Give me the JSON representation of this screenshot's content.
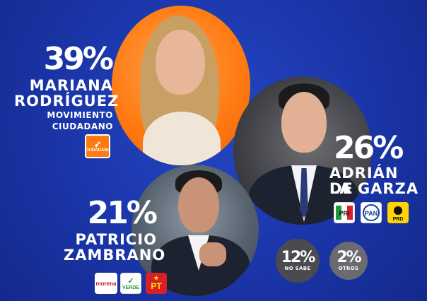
{
  "candidates": [
    {
      "percent": "39%",
      "name_line1": "MARIANA",
      "name_line2": "RODRÍGUEZ",
      "party_line1": "MOVIMIENTO",
      "party_line2": "CIUDADANO",
      "logo_text": "CIUDADANO",
      "color": "#ff7a12"
    },
    {
      "percent": "26%",
      "name_line1": "ADRIÁN DE",
      "name_line2": "LA GARZA",
      "logos": [
        "PRI",
        "PAN",
        "PRD"
      ]
    },
    {
      "percent": "21%",
      "name_line1": "PATRICIO",
      "name_line2": "ZAMBRANO",
      "logos": [
        "morena",
        "VERDE",
        "PT"
      ]
    }
  ],
  "others": [
    {
      "percent": "12%",
      "label": "NO SABE"
    },
    {
      "percent": "2%",
      "label": "OTROS"
    }
  ],
  "colors": {
    "background": "#1a35a8",
    "accent": "#ff7a12"
  }
}
